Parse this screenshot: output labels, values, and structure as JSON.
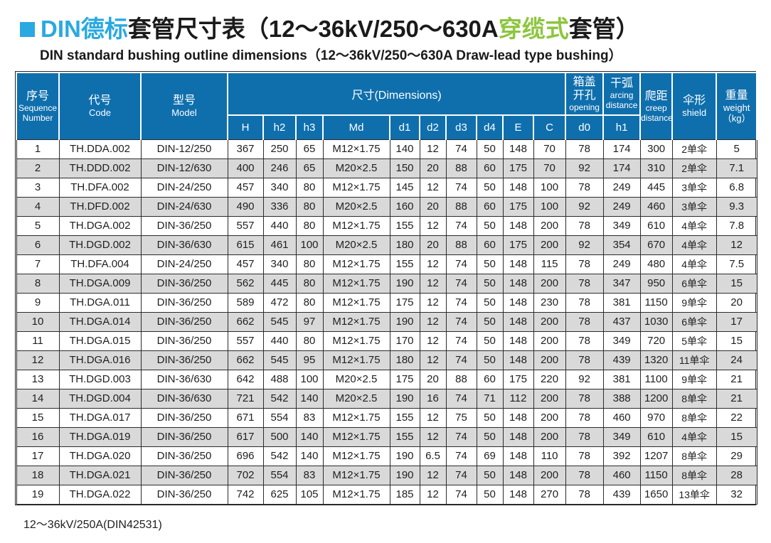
{
  "colors": {
    "header_blue": "#0f6fad",
    "title_blue": "#29a9e1",
    "title_green": "#8dc63f",
    "alt_row_gray": "#d9d9d9",
    "border_dark": "#2b2b2b"
  },
  "title": {
    "part_blue": "DIN德标",
    "part_black1": "套管尺寸表（12～36kV/250～630A",
    "part_green": "穿缆式",
    "part_black2": "套管）",
    "subtitle": "DIN standard bushing outline dimensions（12～36kV/250～630A Draw-lead type bushing）"
  },
  "table": {
    "header": {
      "seq_zh": "序号",
      "seq_en1": "Sequence",
      "seq_en2": "Number",
      "code_zh": "代号",
      "code_en": "Code",
      "model_zh": "型号",
      "model_en": "Model",
      "dims": "尺寸(Dimensions)",
      "dim_cols": [
        "H",
        "h2",
        "h3",
        "Md",
        "d1",
        "d2",
        "d3",
        "d4",
        "E",
        "C"
      ],
      "opening_zh1": "箱盖",
      "opening_zh2": "开孔",
      "opening_en": "opening",
      "opening_sub": "d0",
      "arcing_zh": "干弧",
      "arcing_en1": "arcing",
      "arcing_en2": "distance",
      "arcing_sub": "h1",
      "creep_zh": "爬距",
      "creep_en1": "creep",
      "creep_en2": "distance",
      "shield_zh": "伞形",
      "shield_en": "shield",
      "weight_zh": "重量",
      "weight_en1": "weight",
      "weight_en2": "（kg）"
    },
    "rows": [
      [
        "1",
        "TH.DDA.002",
        "DIN-12/250",
        "367",
        "250",
        "65",
        "M12×1.75",
        "140",
        "12",
        "74",
        "50",
        "148",
        "70",
        "78",
        "174",
        "300",
        "2单伞",
        "5"
      ],
      [
        "2",
        "TH.DDD.002",
        "DIN-12/630",
        "400",
        "246",
        "65",
        "M20×2.5",
        "150",
        "20",
        "88",
        "60",
        "175",
        "70",
        "92",
        "174",
        "310",
        "2单伞",
        "7.1"
      ],
      [
        "3",
        "TH.DFA.002",
        "DIN-24/250",
        "457",
        "340",
        "80",
        "M12×1.75",
        "145",
        "12",
        "74",
        "50",
        "148",
        "100",
        "78",
        "249",
        "445",
        "3单伞",
        "6.8"
      ],
      [
        "4",
        "TH.DFD.002",
        "DIN-24/630",
        "490",
        "336",
        "80",
        "M20×2.5",
        "160",
        "20",
        "88",
        "60",
        "175",
        "100",
        "92",
        "249",
        "460",
        "3单伞",
        "9.3"
      ],
      [
        "5",
        "TH.DGA.002",
        "DIN-36/250",
        "557",
        "440",
        "80",
        "M12×1.75",
        "155",
        "12",
        "74",
        "50",
        "148",
        "200",
        "78",
        "349",
        "610",
        "4单伞",
        "7.8"
      ],
      [
        "6",
        "TH.DGD.002",
        "DIN-36/630",
        "615",
        "461",
        "100",
        "M20×2.5",
        "180",
        "20",
        "88",
        "60",
        "175",
        "200",
        "92",
        "354",
        "670",
        "4单伞",
        "12"
      ],
      [
        "7",
        "TH.DFA.004",
        "DIN-24/250",
        "457",
        "340",
        "80",
        "M12×1.75",
        "155",
        "12",
        "74",
        "50",
        "148",
        "115",
        "78",
        "249",
        "480",
        "4单伞",
        "7.5"
      ],
      [
        "8",
        "TH.DGA.009",
        "DIN-36/250",
        "562",
        "445",
        "80",
        "M12×1.75",
        "190",
        "12",
        "74",
        "50",
        "148",
        "200",
        "78",
        "347",
        "950",
        "6单伞",
        "15"
      ],
      [
        "9",
        "TH.DGA.011",
        "DIN-36/250",
        "589",
        "472",
        "80",
        "M12×1.75",
        "175",
        "12",
        "74",
        "50",
        "148",
        "230",
        "78",
        "381",
        "1150",
        "9单伞",
        "20"
      ],
      [
        "10",
        "TH.DGA.014",
        "DIN-36/250",
        "662",
        "545",
        "97",
        "M12×1.75",
        "190",
        "12",
        "74",
        "50",
        "148",
        "200",
        "78",
        "437",
        "1030",
        "6单伞",
        "17"
      ],
      [
        "11",
        "TH.DGA.015",
        "DIN-36/250",
        "557",
        "440",
        "80",
        "M12×1.75",
        "170",
        "12",
        "74",
        "50",
        "148",
        "200",
        "78",
        "349",
        "720",
        "5单伞",
        "15"
      ],
      [
        "12",
        "TH.DGA.016",
        "DIN-36/250",
        "662",
        "545",
        "95",
        "M12×1.75",
        "180",
        "12",
        "74",
        "50",
        "148",
        "200",
        "78",
        "439",
        "1320",
        "11单伞",
        "24"
      ],
      [
        "13",
        "TH.DGD.003",
        "DIN-36/630",
        "642",
        "488",
        "100",
        "M20×2.5",
        "175",
        "20",
        "88",
        "60",
        "175",
        "220",
        "92",
        "381",
        "1100",
        "9单伞",
        "21"
      ],
      [
        "14",
        "TH.DGD.004",
        "DIN-36/630",
        "721",
        "542",
        "140",
        "M20×2.5",
        "190",
        "16",
        "74",
        "71",
        "112",
        "200",
        "78",
        "388",
        "1200",
        "8单伞",
        "21"
      ],
      [
        "15",
        "TH.DGA.017",
        "DIN-36/250",
        "671",
        "554",
        "83",
        "M12×1.75",
        "155",
        "12",
        "75",
        "50",
        "148",
        "200",
        "78",
        "460",
        "970",
        "8单伞",
        "22"
      ],
      [
        "16",
        "TH.DGA.019",
        "DIN-36/250",
        "617",
        "500",
        "140",
        "M12×1.75",
        "155",
        "12",
        "74",
        "50",
        "148",
        "200",
        "78",
        "349",
        "610",
        "4单伞",
        "15"
      ],
      [
        "17",
        "TH.DGA.020",
        "DIN-36/250",
        "696",
        "542",
        "140",
        "M12×1.75",
        "190",
        "6.5",
        "74",
        "69",
        "148",
        "110",
        "78",
        "392",
        "1207",
        "8单伞",
        "29"
      ],
      [
        "18",
        "TH.DGA.021",
        "DIN-36/250",
        "702",
        "554",
        "83",
        "M12×1.75",
        "190",
        "12",
        "74",
        "50",
        "148",
        "200",
        "78",
        "460",
        "1150",
        "8单伞",
        "28"
      ],
      [
        "19",
        "TH.DGA.022",
        "DIN-36/250",
        "742",
        "625",
        "105",
        "M12×1.75",
        "185",
        "12",
        "74",
        "50",
        "148",
        "270",
        "78",
        "439",
        "1650",
        "13单伞",
        "32"
      ]
    ],
    "col_keys": [
      "seq",
      "code",
      "model",
      "H",
      "h2",
      "h3",
      "Md",
      "d1",
      "d2",
      "d3",
      "d4",
      "E",
      "C",
      "d0",
      "h1",
      "creep",
      "shield",
      "weight"
    ]
  },
  "footer": {
    "note": "12～36kV/250A(DIN42531)"
  }
}
